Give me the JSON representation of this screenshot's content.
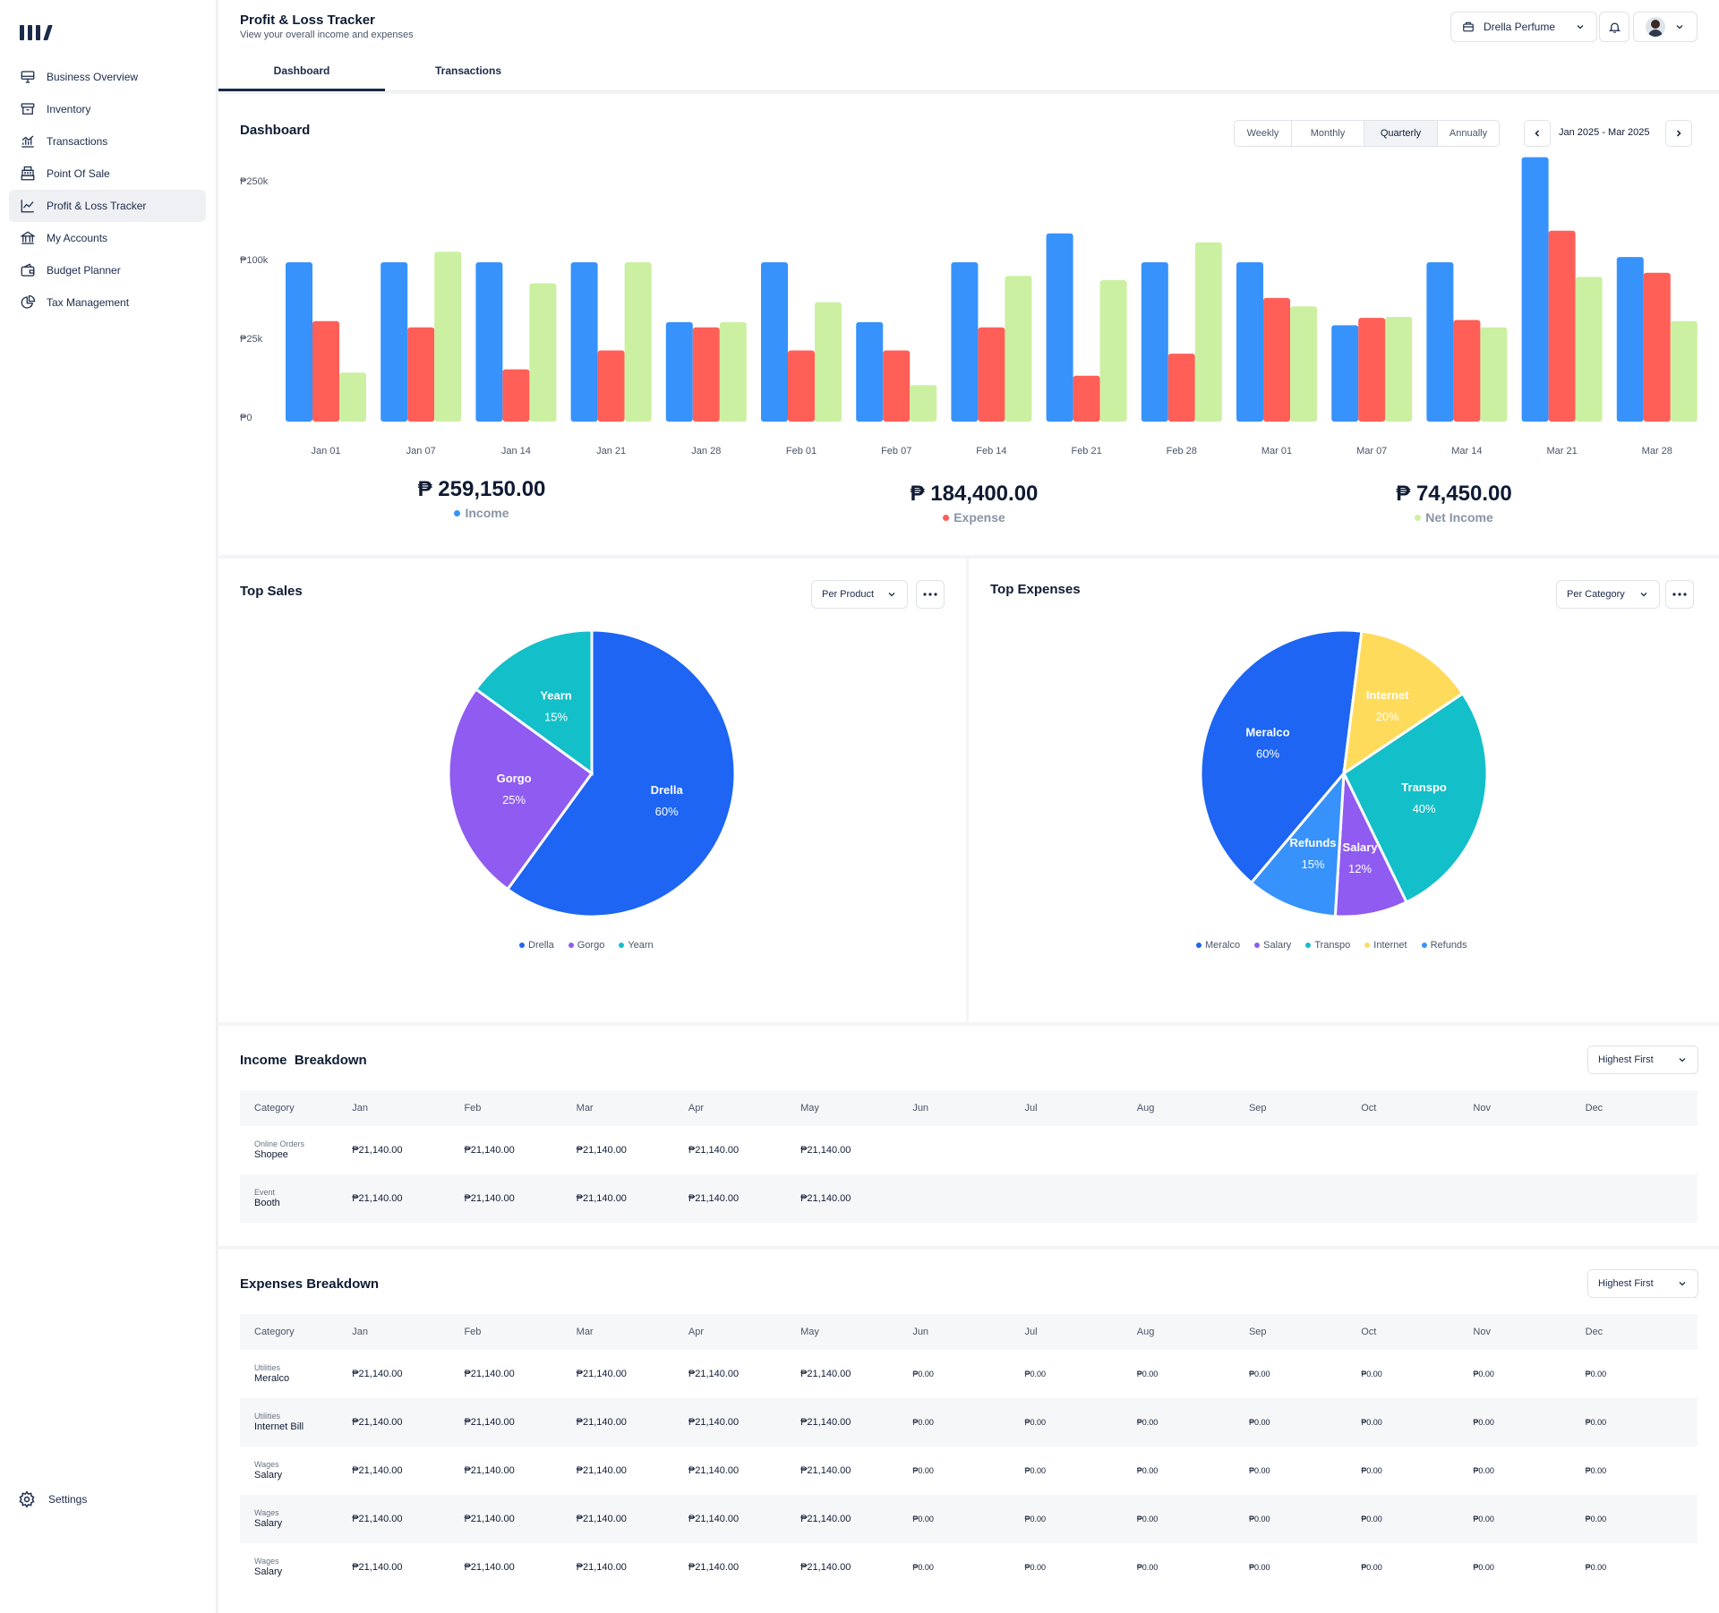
{
  "sidebar": {
    "items": [
      {
        "label": "Business Overview",
        "icon": "monitor-icon"
      },
      {
        "label": "Inventory",
        "icon": "archive-box-icon"
      },
      {
        "label": "Transactions",
        "icon": "chart-trend-icon"
      },
      {
        "label": "Point Of Sale",
        "icon": "cash-register-icon"
      },
      {
        "label": "Profit & Loss Tracker",
        "icon": "line-chart-icon"
      },
      {
        "label": "My Accounts",
        "icon": "bank-icon"
      },
      {
        "label": "Budget Planner",
        "icon": "wallet-icon"
      },
      {
        "label": "Tax Management",
        "icon": "pie-chart-icon"
      }
    ],
    "settings_label": "Settings"
  },
  "header": {
    "title": "Profit & Loss Tracker",
    "subtitle": "View your overall income and expenses",
    "tabs": [
      "Dashboard",
      "Transactions"
    ],
    "store_name": "Drella Perfume"
  },
  "dashboard": {
    "title": "Dashboard",
    "periods": [
      "Weekly",
      "Monthly",
      "Quarterly",
      "Annually"
    ],
    "selected_period": "Quarterly",
    "range_label": "Jan 2025 - Mar 2025",
    "totals": {
      "income": {
        "amount": "₱ 259,150.00",
        "label": "Income"
      },
      "expense": {
        "amount": "₱ 184,400.00",
        "label": "Expense"
      },
      "net": {
        "amount": "₱ 74,450.00",
        "label": "Net Income"
      }
    }
  },
  "colors": {
    "income": "#3792fb",
    "expense": "#ff5f57",
    "net": "#cbf0a1",
    "drella": "#1d65f2",
    "gorgo": "#8f5bf0",
    "yearn": "#13bfc8",
    "internet": "#ffdb5c",
    "refunds": "#3792fb"
  },
  "chart_data": [
    {
      "type": "bar",
      "categories": [
        "Jan 01",
        "Jan 07",
        "Jan 14",
        "Jan 21",
        "Jan 28",
        "Feb 01",
        "Feb 07",
        "Feb 14",
        "Feb 21",
        "Feb 28",
        "Mar 01",
        "Mar 07",
        "Mar 14",
        "Mar 21",
        "Mar 28"
      ],
      "yticks": [
        "₱250k",
        "₱100k",
        "₱25k",
        "₱0"
      ],
      "ytick_values": [
        250000,
        100000,
        25000,
        0
      ],
      "series": [
        {
          "name": "Income",
          "values": [
            100000,
            100000,
            100000,
            100000,
            43000,
            100000,
            43000,
            100000,
            155000,
            100000,
            100000,
            40000,
            100000,
            300000,
            110000
          ]
        },
        {
          "name": "Expense",
          "values": [
            44000,
            38000,
            16000,
            22000,
            38000,
            22000,
            22000,
            38000,
            14000,
            21000,
            66000,
            47000,
            45000,
            160000,
            90000
          ]
        },
        {
          "name": "Net Income",
          "values": [
            15000,
            120000,
            80000,
            100000,
            43000,
            62000,
            11000,
            87000,
            83000,
            138000,
            58000,
            48000,
            38000,
            86000,
            44000
          ]
        }
      ]
    },
    {
      "type": "pie",
      "title": "Top Sales",
      "dropdown": "Per Product",
      "slices": [
        {
          "name": "Drella",
          "value": 60,
          "label": "60%"
        },
        {
          "name": "Gorgo",
          "value": 25,
          "label": "25%"
        },
        {
          "name": "Yearn",
          "value": 15,
          "label": "15%"
        }
      ]
    },
    {
      "type": "pie",
      "title": "Top Expenses",
      "dropdown": "Per Category",
      "slices": [
        {
          "name": "Meralco",
          "value": 60,
          "label": "60%"
        },
        {
          "name": "Internet",
          "value": 20,
          "label": "20%"
        },
        {
          "name": "Transpo",
          "value": 40,
          "label": "40%"
        },
        {
          "name": "Salary",
          "value": 12,
          "label": "12%"
        },
        {
          "name": "Refunds",
          "value": 15,
          "label": "15%"
        }
      ],
      "legend": [
        "Meralco",
        "Salary",
        "Transpo",
        "Internet",
        "Refunds"
      ]
    }
  ],
  "income_breakdown": {
    "title": "Income  Breakdown",
    "sort": "Highest First",
    "columns": [
      "Category",
      "Jan",
      "Feb",
      "Mar",
      "Apr",
      "May",
      "Jun",
      "Jul",
      "Aug",
      "Sep",
      "Oct",
      "Nov",
      "Dec"
    ],
    "rows": [
      {
        "sub": "Online Orders",
        "name": "Shopee",
        "values": [
          "₱21,140.00",
          "₱21,140.00",
          "₱21,140.00",
          "₱21,140.00",
          "₱21,140.00",
          "",
          "",
          "",
          "",
          "",
          "",
          ""
        ]
      },
      {
        "sub": "Event",
        "name": "Booth",
        "values": [
          "₱21,140.00",
          "₱21,140.00",
          "₱21,140.00",
          "₱21,140.00",
          "₱21,140.00",
          "",
          "",
          "",
          "",
          "",
          "",
          ""
        ]
      }
    ]
  },
  "expenses_breakdown": {
    "title": "Expenses Breakdown",
    "sort": "Highest First",
    "columns": [
      "Category",
      "Jan",
      "Feb",
      "Mar",
      "Apr",
      "May",
      "Jun",
      "Jul",
      "Aug",
      "Sep",
      "Oct",
      "Nov",
      "Dec"
    ],
    "rows": [
      {
        "sub": "Utilities",
        "name": "Meralco",
        "values": [
          "₱21,140.00",
          "₱21,140.00",
          "₱21,140.00",
          "₱21,140.00",
          "₱21,140.00",
          "₱0.00",
          "₱0.00",
          "₱0.00",
          "₱0.00",
          "₱0.00",
          "₱0.00",
          "₱0.00"
        ]
      },
      {
        "sub": "Utilities",
        "name": "Internet Bill",
        "values": [
          "₱21,140.00",
          "₱21,140.00",
          "₱21,140.00",
          "₱21,140.00",
          "₱21,140.00",
          "₱0.00",
          "₱0.00",
          "₱0.00",
          "₱0.00",
          "₱0.00",
          "₱0.00",
          "₱0.00"
        ]
      },
      {
        "sub": "Wages",
        "name": "Salary",
        "values": [
          "₱21,140.00",
          "₱21,140.00",
          "₱21,140.00",
          "₱21,140.00",
          "₱21,140.00",
          "₱0.00",
          "₱0.00",
          "₱0.00",
          "₱0.00",
          "₱0.00",
          "₱0.00",
          "₱0.00"
        ]
      },
      {
        "sub": "Wages",
        "name": "Salary",
        "values": [
          "₱21,140.00",
          "₱21,140.00",
          "₱21,140.00",
          "₱21,140.00",
          "₱21,140.00",
          "₱0.00",
          "₱0.00",
          "₱0.00",
          "₱0.00",
          "₱0.00",
          "₱0.00",
          "₱0.00"
        ]
      },
      {
        "sub": "Wages",
        "name": "Salary",
        "values": [
          "₱21,140.00",
          "₱21,140.00",
          "₱21,140.00",
          "₱21,140.00",
          "₱21,140.00",
          "₱0.00",
          "₱0.00",
          "₱0.00",
          "₱0.00",
          "₱0.00",
          "₱0.00",
          "₱0.00"
        ]
      }
    ]
  }
}
